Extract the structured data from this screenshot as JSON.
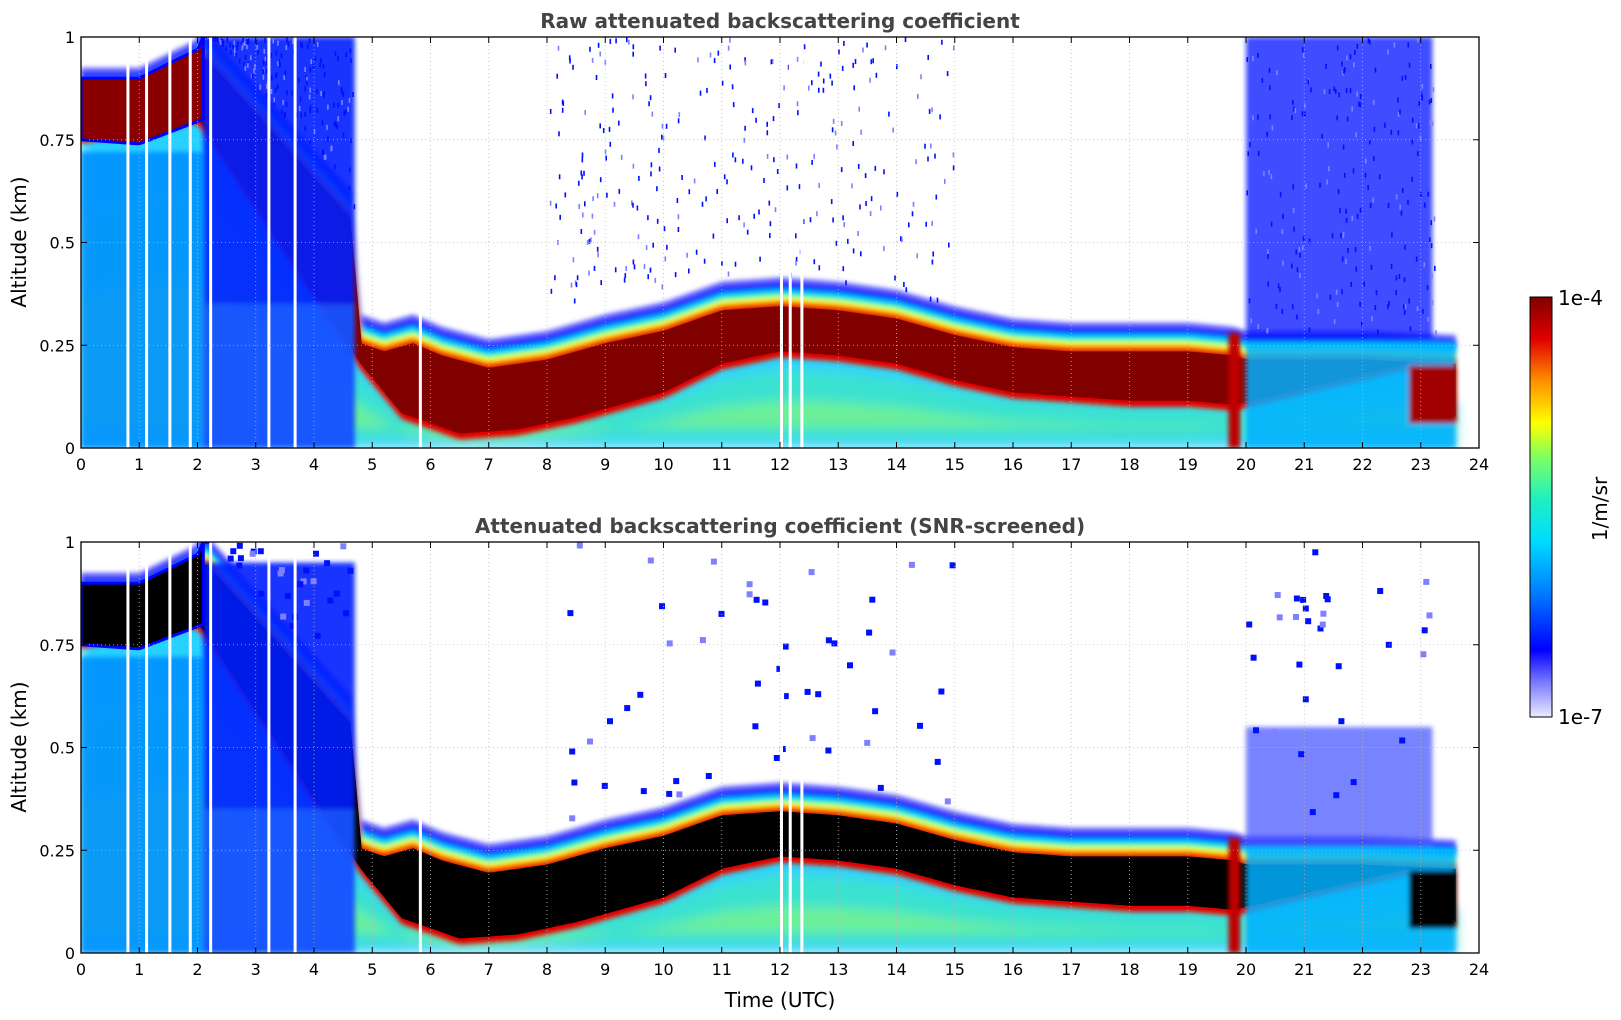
{
  "chart_data": [
    {
      "type": "heatmap",
      "title": "Raw attenuated backscattering coefficient",
      "xlabel": "",
      "ylabel": "Altitude (km)",
      "xlim": [
        0,
        24
      ],
      "ylim": [
        0,
        1
      ],
      "x_ticks": [
        "0",
        "1",
        "2",
        "3",
        "4",
        "5",
        "6",
        "7",
        "8",
        "9",
        "10",
        "11",
        "12",
        "13",
        "14",
        "15",
        "16",
        "17",
        "18",
        "19",
        "20",
        "21",
        "22",
        "23",
        "24"
      ],
      "y_ticks": [
        {
          "value": 0,
          "label": "0"
        },
        {
          "value": 0.25,
          "label": "0.25"
        },
        {
          "value": 0.5,
          "label": "0.5"
        },
        {
          "value": 0.75,
          "label": "0.75"
        },
        {
          "value": 1,
          "label": "1"
        }
      ],
      "grid": true,
      "screened": false,
      "layer_top_km": [
        {
          "t": 0,
          "alt": 0.9
        },
        {
          "t": 1,
          "alt": 0.9
        },
        {
          "t": 2,
          "alt": 0.97
        },
        {
          "t": 2.1,
          "alt": 1.0
        },
        {
          "t": 4.65,
          "alt": 0.6
        },
        {
          "t": 4.8,
          "alt": 0.3
        },
        {
          "t": 5.2,
          "alt": 0.28
        },
        {
          "t": 5.7,
          "alt": 0.3
        },
        {
          "t": 6.2,
          "alt": 0.27
        },
        {
          "t": 7,
          "alt": 0.24
        },
        {
          "t": 8,
          "alt": 0.26
        },
        {
          "t": 9,
          "alt": 0.3
        },
        {
          "t": 10,
          "alt": 0.33
        },
        {
          "t": 11,
          "alt": 0.38
        },
        {
          "t": 12,
          "alt": 0.39
        },
        {
          "t": 13,
          "alt": 0.38
        },
        {
          "t": 14,
          "alt": 0.36
        },
        {
          "t": 15,
          "alt": 0.32
        },
        {
          "t": 16,
          "alt": 0.29
        },
        {
          "t": 17,
          "alt": 0.28
        },
        {
          "t": 18,
          "alt": 0.28
        },
        {
          "t": 19,
          "alt": 0.28
        },
        {
          "t": 19.8,
          "alt": 0.27
        },
        {
          "t": 20,
          "alt": 0.26
        },
        {
          "t": 22,
          "alt": 0.26
        },
        {
          "t": 23.6,
          "alt": 0.25
        }
      ],
      "layer_base_km": [
        {
          "t": 0,
          "alt": 0.75
        },
        {
          "t": 2,
          "alt": 0.8
        },
        {
          "t": 4.8,
          "alt": 0.2
        },
        {
          "t": 5.5,
          "alt": 0.08
        },
        {
          "t": 6.5,
          "alt": 0.03
        },
        {
          "t": 7.5,
          "alt": 0.04
        },
        {
          "t": 8.5,
          "alt": 0.07
        },
        {
          "t": 10,
          "alt": 0.13
        },
        {
          "t": 11,
          "alt": 0.2
        },
        {
          "t": 12,
          "alt": 0.23
        },
        {
          "t": 13,
          "alt": 0.22
        },
        {
          "t": 14,
          "alt": 0.2
        },
        {
          "t": 15,
          "alt": 0.16
        },
        {
          "t": 16,
          "alt": 0.13
        },
        {
          "t": 17,
          "alt": 0.12
        },
        {
          "t": 18,
          "alt": 0.11
        },
        {
          "t": 19,
          "alt": 0.11
        },
        {
          "t": 19.8,
          "alt": 0.1
        },
        {
          "t": 22.8,
          "alt": 0.2
        },
        {
          "t": 23.6,
          "alt": 0.07
        }
      ]
    },
    {
      "type": "heatmap",
      "title": "Attenuated backscattering coefficient (SNR-screened)",
      "xlabel": "Time (UTC)",
      "ylabel": "Altitude (km)",
      "xlim": [
        0,
        24
      ],
      "ylim": [
        0,
        1
      ],
      "x_ticks": [
        "0",
        "1",
        "2",
        "3",
        "4",
        "5",
        "6",
        "7",
        "8",
        "9",
        "10",
        "11",
        "12",
        "13",
        "14",
        "15",
        "16",
        "17",
        "18",
        "19",
        "20",
        "21",
        "22",
        "23",
        "24"
      ],
      "y_ticks": [
        {
          "value": 0,
          "label": "0"
        },
        {
          "value": 0.25,
          "label": "0.25"
        },
        {
          "value": 0.5,
          "label": "0.5"
        },
        {
          "value": 0.75,
          "label": "0.75"
        },
        {
          "value": 1,
          "label": "1"
        }
      ],
      "grid": true,
      "screened": true,
      "saturated_color": "#000000"
    }
  ],
  "colorbar": {
    "label": "1/m/sr",
    "max_label": "1e-4",
    "min_label": "1e-7",
    "scale": "log",
    "range": [
      1e-07,
      0.0001
    ],
    "colors": [
      "#ebebff",
      "#0000ff",
      "#00a0ff",
      "#00e6e6",
      "#50ff80",
      "#ffff00",
      "#ff8000",
      "#e00000",
      "#800000"
    ]
  },
  "data_end_utc": 23.6
}
